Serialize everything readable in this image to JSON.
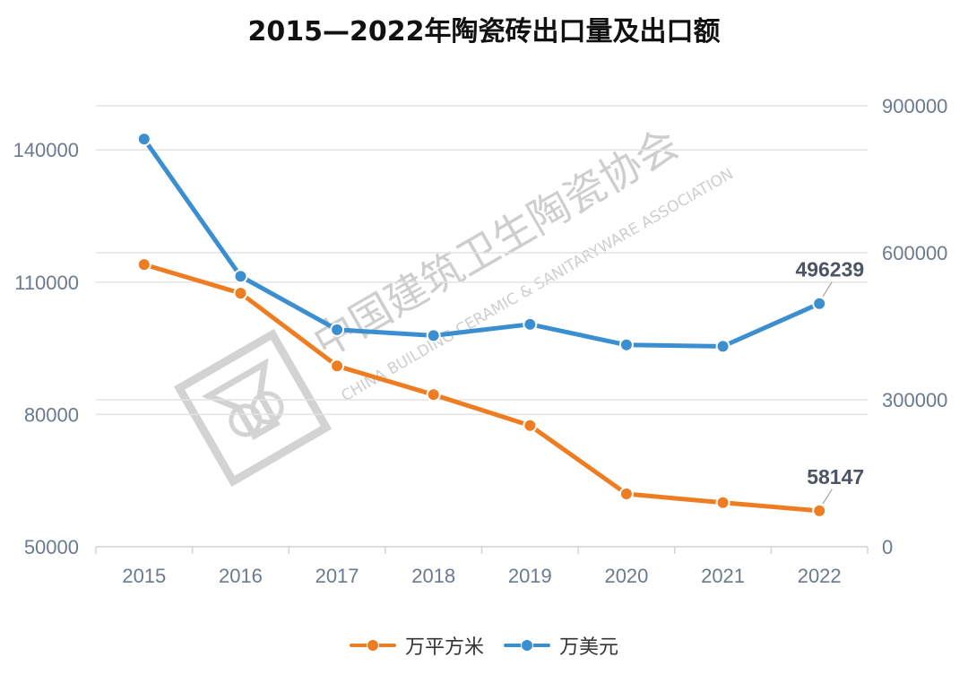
{
  "chart_data": {
    "type": "line",
    "title": "2015—2022年陶瓷砖出口量及出口额",
    "categories": [
      "2015",
      "2016",
      "2017",
      "2018",
      "2019",
      "2020",
      "2021",
      "2022"
    ],
    "series": [
      {
        "name": "万平方米",
        "axis": "left",
        "color": "#ee7d22",
        "values": [
          114000,
          107500,
          91000,
          84500,
          77500,
          62000,
          60000,
          58147
        ]
      },
      {
        "name": "万美元",
        "axis": "right",
        "color": "#3b8fd0",
        "values": [
          832000,
          552000,
          443000,
          431000,
          454000,
          412000,
          409000,
          496239
        ]
      }
    ],
    "y_left": {
      "lim": [
        50000,
        150000
      ],
      "ticks": [
        50000,
        80000,
        110000,
        140000
      ]
    },
    "y_right": {
      "lim": [
        0,
        900000
      ],
      "ticks": [
        0,
        300000,
        600000,
        900000
      ]
    },
    "data_labels": [
      {
        "series": 0,
        "index": 7,
        "text": "58147"
      },
      {
        "series": 1,
        "index": 7,
        "text": "496239"
      }
    ],
    "grid": true,
    "legend_position": "bottom"
  },
  "watermark": {
    "name_cn": "中国建筑卫生陶瓷协会",
    "name_en": "CHINA BUILDING CERAMIC & SANITARYWARE ASSOCIATION"
  }
}
